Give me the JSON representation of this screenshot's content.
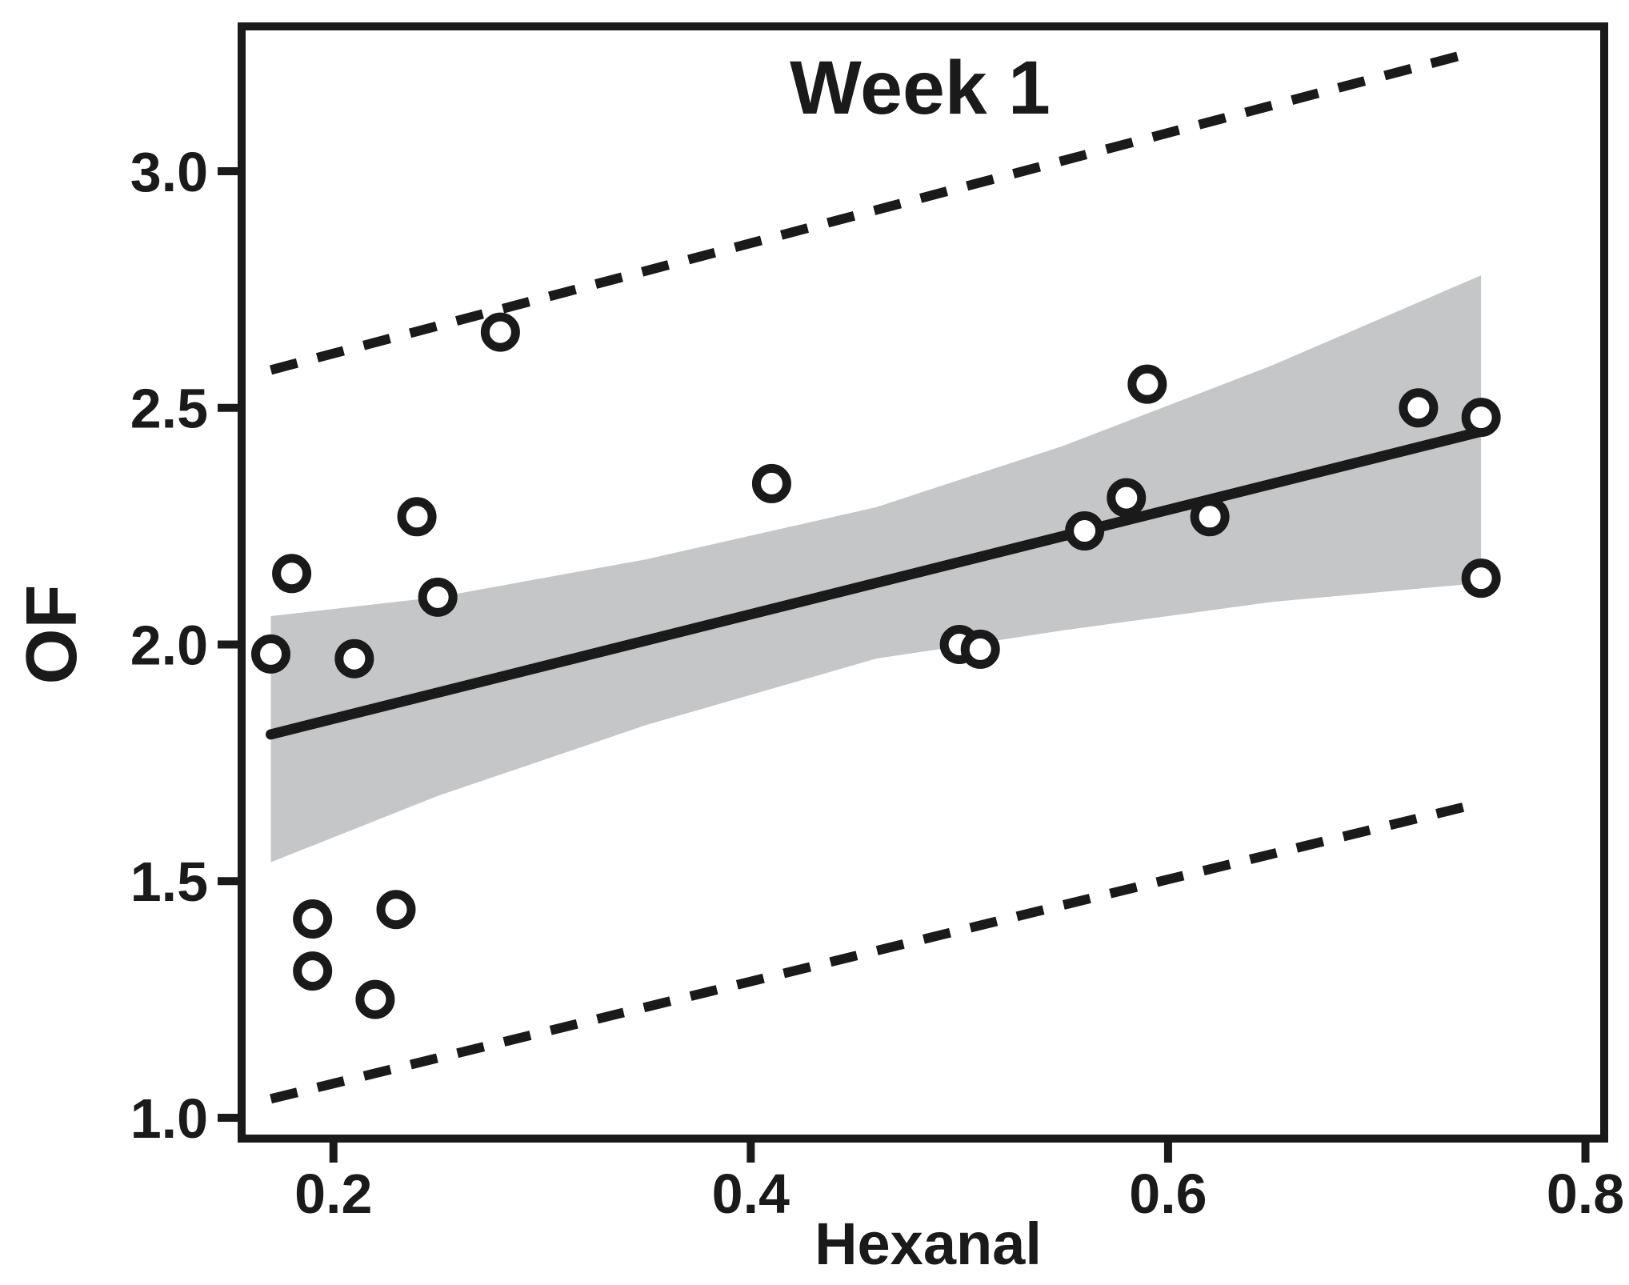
{
  "chart_data": {
    "type": "scatter",
    "title": "Week 1",
    "xlabel": "Hexanal",
    "ylabel": "OF",
    "xlim": [
      0.156,
      0.809
    ],
    "ylim": [
      0.956,
      3.306
    ],
    "grid": false,
    "legend": "none",
    "marker": "open-circle",
    "x_ticks": [
      0.2,
      0.4,
      0.6,
      0.8
    ],
    "x_tick_labels": [
      "0.2",
      "0.4",
      "0.6",
      "0.8"
    ],
    "y_ticks": [
      3.0,
      2.5,
      2.0,
      1.5,
      1.0
    ],
    "y_tick_labels": [
      "3.0",
      "2.5",
      "2.0",
      "1.5",
      "1.0"
    ],
    "points": [
      [
        0.17,
        1.98
      ],
      [
        0.18,
        2.15
      ],
      [
        0.19,
        1.42
      ],
      [
        0.19,
        1.31
      ],
      [
        0.21,
        1.97
      ],
      [
        0.22,
        1.25
      ],
      [
        0.23,
        1.44
      ],
      [
        0.24,
        2.27
      ],
      [
        0.25,
        2.1
      ],
      [
        0.28,
        2.66
      ],
      [
        0.41,
        2.34
      ],
      [
        0.5,
        2.0
      ],
      [
        0.51,
        1.99
      ],
      [
        0.56,
        2.24
      ],
      [
        0.58,
        2.31
      ],
      [
        0.59,
        2.55
      ],
      [
        0.62,
        2.27
      ],
      [
        0.72,
        2.5
      ],
      [
        0.75,
        2.48
      ],
      [
        0.75,
        2.14
      ]
    ],
    "regression_line": {
      "x": [
        0.17,
        0.75
      ],
      "y": [
        1.81,
        2.45
      ]
    },
    "confidence_band": {
      "x": [
        0.17,
        0.25,
        0.35,
        0.46,
        0.55,
        0.65,
        0.75
      ],
      "top": [
        2.06,
        2.1,
        2.18,
        2.29,
        2.42,
        2.59,
        2.78
      ],
      "bottom": [
        1.54,
        1.68,
        1.83,
        1.97,
        2.03,
        2.09,
        2.13
      ]
    },
    "prediction_interval": {
      "upper": {
        "x": [
          0.17,
          0.745
        ],
        "y": [
          2.58,
          3.25
        ]
      },
      "lower": {
        "x": [
          0.17,
          0.745
        ],
        "y": [
          1.04,
          1.66
        ]
      }
    },
    "colors": {
      "ink": "#1a1a1a",
      "band": "#c5c6c8",
      "background": "#ffffff"
    }
  }
}
